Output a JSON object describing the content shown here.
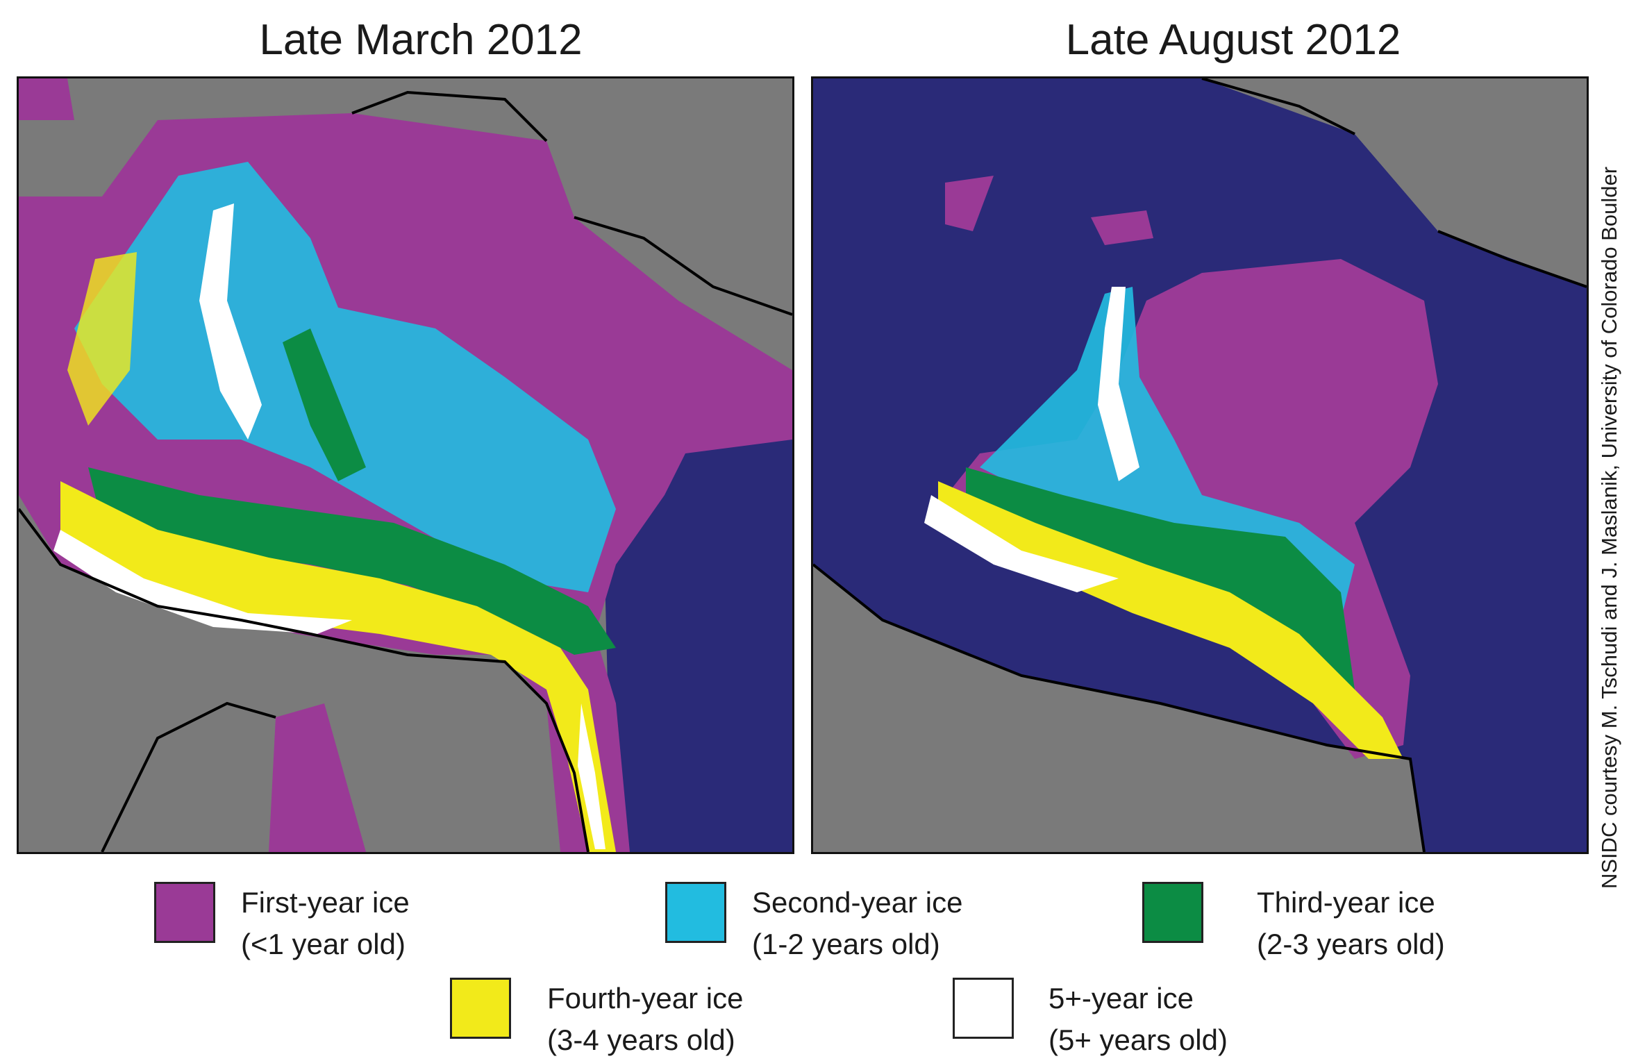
{
  "panels": [
    {
      "title": "Late March 2012"
    },
    {
      "title": "Late August 2012"
    }
  ],
  "colors": {
    "land": "#7a7a7a",
    "ocean": "#2a2a78",
    "first_year": "#9a3a96",
    "second_year": "#22bce0",
    "third_year": "#0c8c44",
    "fourth_year": "#f2ea1a",
    "five_plus": "#ffffff",
    "coastline": "#000000"
  },
  "legend": [
    {
      "title": "First-year ice",
      "subtitle": "(<1 year old)",
      "color": "#9a3a96"
    },
    {
      "title": "Second-year ice",
      "subtitle": "(1-2 years old)",
      "color": "#22bce0"
    },
    {
      "title": "Third-year ice",
      "subtitle": "(2-3 years old)",
      "color": "#0c8c44"
    },
    {
      "title": "Fourth-year ice",
      "subtitle": "(3-4 years old)",
      "color": "#f2ea1a"
    },
    {
      "title": "5+-year ice",
      "subtitle": "(5+ years old)",
      "color": "#ffffff"
    }
  ],
  "credit": "NSIDC courtesy M. Tschudi and J. Maslanik, University of Colorado Boulder"
}
